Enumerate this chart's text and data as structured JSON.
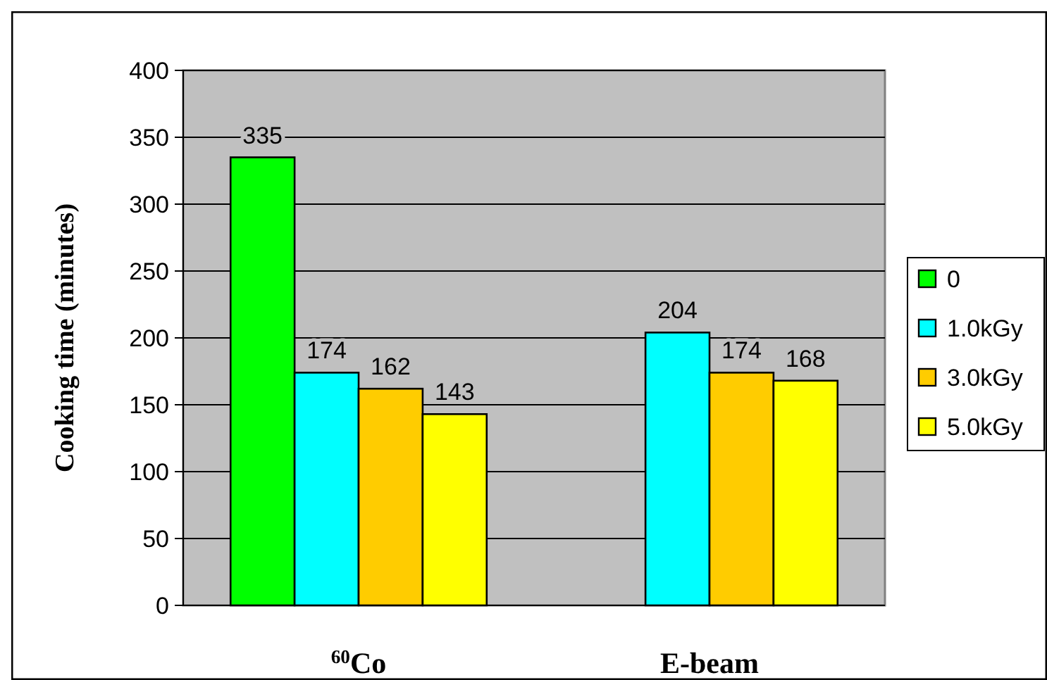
{
  "chart_data": {
    "type": "bar",
    "ylabel": "Cooking time (minutes)",
    "categories": [
      "$^{60}$Co",
      "E-beam"
    ],
    "series": [
      {
        "name": "0",
        "color": "#00ff00",
        "values": [
          335,
          null
        ]
      },
      {
        "name": "1.0kGy",
        "color": "#00ffff",
        "values": [
          174,
          204
        ]
      },
      {
        "name": "3.0kGy",
        "color": "#ffcc00",
        "values": [
          162,
          174
        ]
      },
      {
        "name": "5.0kGy",
        "color": "#ffff00",
        "values": [
          143,
          168
        ]
      }
    ],
    "ylim": [
      0,
      400
    ],
    "yticks": [
      0,
      50,
      100,
      150,
      200,
      250,
      300,
      350,
      400
    ],
    "grid": "y",
    "legend": "right",
    "data_labels": true
  }
}
